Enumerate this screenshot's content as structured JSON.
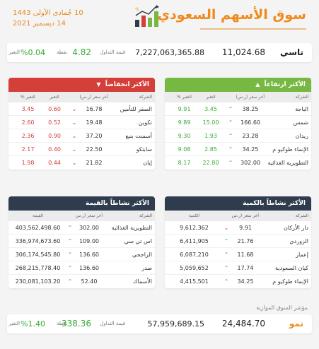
{
  "header": {
    "title": "سوق الأسهم السعودي",
    "date_hijri": "10 جُمادى الأولى 1443",
    "date_gregorian": "14 ديسمبر 2021"
  },
  "colors": {
    "accent": "#f08a1c",
    "up": "#3aaa35",
    "down": "#d43f3a",
    "dark": "#2f3c4d",
    "green": "#77b843"
  },
  "tasi": {
    "name": "تاسي",
    "value": "11,024.68",
    "turnover": "7,227,063,365.88",
    "turnover_label": "قيمة التداول",
    "points": "4.82",
    "points_label": "نقطة",
    "change": "%0.04",
    "change_label": "التغير"
  },
  "gainers": {
    "title": "الأكثر ارتفاعاً",
    "headers": {
      "name": "الشركة",
      "price": "آخر سعر (ر.س)",
      "change": "التغير",
      "pct": "التغير %"
    },
    "rows": [
      {
        "name": "الباحة",
        "price": "38.25",
        "change": "3.45",
        "pct": "9.91"
      },
      {
        "name": "شمس",
        "price": "166.60",
        "change": "15.00",
        "pct": "9.89"
      },
      {
        "name": "ريدان",
        "price": "23.28",
        "change": "1.93",
        "pct": "9.30"
      },
      {
        "name": "الإنماء طوكيو م",
        "price": "34.25",
        "change": "2.85",
        "pct": "9.08"
      },
      {
        "name": "التطويرية الغذائية",
        "price": "302.00",
        "change": "22.80",
        "pct": "8.17"
      }
    ]
  },
  "losers": {
    "title": "الأكثر انخفاضاً",
    "headers": {
      "name": "الشركة",
      "price": "آخر سعر (ر.س)",
      "change": "التغير",
      "pct": "التغير %"
    },
    "rows": [
      {
        "name": "الصقر للتأمين",
        "price": "16.78",
        "change": "0.60",
        "pct": "3.45"
      },
      {
        "name": "تكوين",
        "price": "19.48",
        "change": "0.52",
        "pct": "2.60"
      },
      {
        "name": "أسمنت ينبع",
        "price": "37.20",
        "change": "0.90",
        "pct": "2.36"
      },
      {
        "name": "سابتكو",
        "price": "22.50",
        "change": "0.40",
        "pct": "2.17"
      },
      {
        "name": "إيان",
        "price": "21.82",
        "change": "0.44",
        "pct": "1.98"
      }
    ]
  },
  "active_qty": {
    "title": "الأكثر نشاطاً بالكمية",
    "headers": {
      "name": "الشركة",
      "price": "آخر سعر (ر.س)",
      "value": "الكمية"
    },
    "rows": [
      {
        "name": "دار الأركان",
        "price": "9.91",
        "dir": "down",
        "value": "9,612,362"
      },
      {
        "name": "الزوردي",
        "price": "21.76",
        "dir": "up",
        "value": "6,411,905"
      },
      {
        "name": "إعمار",
        "price": "11.68",
        "dir": "up",
        "value": "6,087,210"
      },
      {
        "name": "كيان السعودية",
        "price": "17.74",
        "dir": "up",
        "value": "5,059,652"
      },
      {
        "name": "الإنماء طوكيو م",
        "price": "34.25",
        "dir": "up",
        "value": "4,415,501"
      }
    ]
  },
  "active_val": {
    "title": "الأكثر نشاطاً بالقيمة",
    "headers": {
      "name": "الشركة",
      "price": "آخر سعر (ر.س)",
      "value": "القيمة"
    },
    "rows": [
      {
        "name": "التطويرية الغذائية",
        "price": "302.00",
        "dir": "up",
        "value": "403,562,498.60"
      },
      {
        "name": "اس تي سي",
        "price": "109.00",
        "dir": "up",
        "value": "336,974,673.60"
      },
      {
        "name": "الراجحي",
        "price": "136.60",
        "dir": "up",
        "value": "306,174,545.80"
      },
      {
        "name": "صدر",
        "price": "136.60",
        "dir": "up",
        "value": "268,215,778.40"
      },
      {
        "name": "الأسماك",
        "price": "52.40",
        "dir": "up",
        "value": "230,081,103.20"
      }
    ]
  },
  "parallel": {
    "section_label": "مؤشر السوق الموازية",
    "name": "نمو",
    "value": "24,484.70",
    "turnover": "57,959,689.15",
    "turnover_label": "قيمة التداول",
    "points": "338.36",
    "points_label": "نقطة",
    "change": "%1.40",
    "change_label": "التغير"
  }
}
